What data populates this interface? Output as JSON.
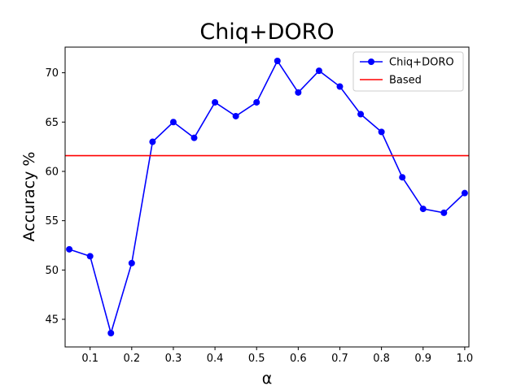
{
  "chart_data": {
    "type": "line",
    "title": "Chiq+DORO",
    "xlabel": "α",
    "ylabel": "Accuracy %",
    "xlim": [
      0.04,
      1.01
    ],
    "ylim": [
      42.2,
      72.6
    ],
    "xticks": [
      "0.1",
      "0.2",
      "0.3",
      "0.4",
      "0.5",
      "0.6",
      "0.7",
      "0.8",
      "0.9",
      "1.0"
    ],
    "yticks": [
      "45",
      "50",
      "55",
      "60",
      "65",
      "70"
    ],
    "grid": false,
    "legend_position": "top-right",
    "series": [
      {
        "name": "Chiq+DORO",
        "color": "#0000ff",
        "marker": "circle",
        "x": [
          0.05,
          0.1,
          0.15,
          0.2,
          0.25,
          0.3,
          0.35,
          0.4,
          0.45,
          0.5,
          0.55,
          0.6,
          0.65,
          0.7,
          0.75,
          0.8,
          0.85,
          0.9,
          0.95,
          1.0
        ],
        "y": [
          52.1,
          51.4,
          43.6,
          50.7,
          63.0,
          65.0,
          63.4,
          67.0,
          65.6,
          67.0,
          71.2,
          68.0,
          70.2,
          68.6,
          65.8,
          64.0,
          59.4,
          56.2,
          55.8,
          57.8
        ]
      }
    ],
    "reference_lines": [
      {
        "name": "Based",
        "color": "#ff0000",
        "y": 61.6
      }
    ]
  }
}
